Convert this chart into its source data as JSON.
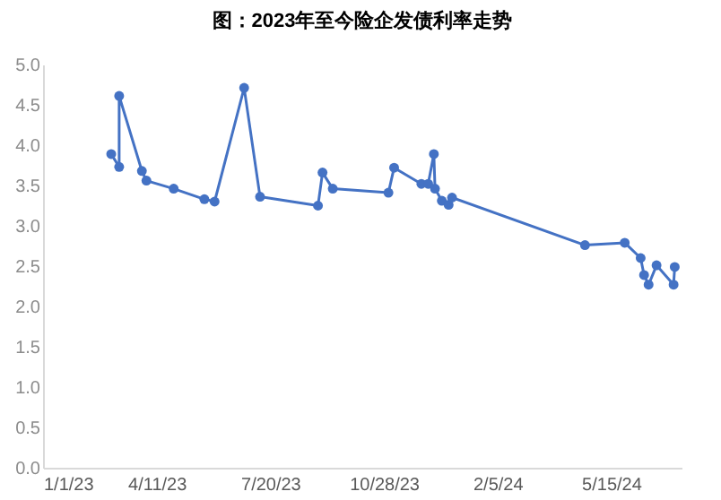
{
  "chart_data": {
    "type": "line",
    "title": "图：2023年至今险企发债利率走势",
    "x": [
      "2023-03-02",
      "2023-03-09",
      "2023-03-09",
      "2023-03-29",
      "2023-04-02",
      "2023-04-26",
      "2023-05-23",
      "2023-06-01",
      "2023-06-27",
      "2023-07-11",
      "2023-08-31",
      "2023-09-04",
      "2023-09-13",
      "2023-11-01",
      "2023-11-06",
      "2023-11-30",
      "2023-12-06",
      "2023-12-11",
      "2023-12-12",
      "2023-12-18",
      "2023-12-24",
      "2023-12-27",
      "2024-04-22",
      "2024-05-27",
      "2024-06-10",
      "2024-06-13",
      "2024-06-17",
      "2024-06-24",
      "2024-07-09",
      "2024-07-10"
    ],
    "series": [
      {
        "color": "#4472c4",
        "values": [
          3.89,
          3.73,
          4.61,
          3.68,
          3.56,
          3.46,
          3.33,
          3.3,
          4.71,
          3.36,
          3.25,
          3.66,
          3.46,
          3.41,
          3.72,
          3.52,
          3.52,
          3.89,
          3.46,
          3.31,
          3.26,
          3.35,
          2.76,
          2.79,
          2.6,
          2.39,
          2.27,
          2.51,
          2.27,
          2.49
        ]
      }
    ],
    "xlim": [
      "2023-01-01",
      "2024-07-16"
    ],
    "xticks": [
      {
        "value": "2023-01-01",
        "label": "1/1/23"
      },
      {
        "value": "2023-04-11",
        "label": "4/11/23"
      },
      {
        "value": "2023-07-20",
        "label": "7/20/23"
      },
      {
        "value": "2023-10-28",
        "label": "10/28/23"
      },
      {
        "value": "2024-02-05",
        "label": "2/5/24"
      },
      {
        "value": "2024-05-15",
        "label": "5/15/24"
      }
    ],
    "ylim": [
      0,
      5
    ],
    "yticks": [
      {
        "value": 0,
        "label": "0.0"
      },
      {
        "value": 0.5,
        "label": "0.5"
      },
      {
        "value": 1,
        "label": "1.0"
      },
      {
        "value": 1.5,
        "label": "1.5"
      },
      {
        "value": 2,
        "label": "2.0"
      },
      {
        "value": 2.5,
        "label": "2.5"
      },
      {
        "value": 3,
        "label": "3.0"
      },
      {
        "value": 3.5,
        "label": "3.5"
      },
      {
        "value": 4,
        "label": "4.0"
      },
      {
        "value": 4.5,
        "label": "4.5"
      },
      {
        "value": 5,
        "label": "5.0"
      }
    ],
    "grid": false,
    "marker": "circle",
    "line_style": "solid"
  }
}
